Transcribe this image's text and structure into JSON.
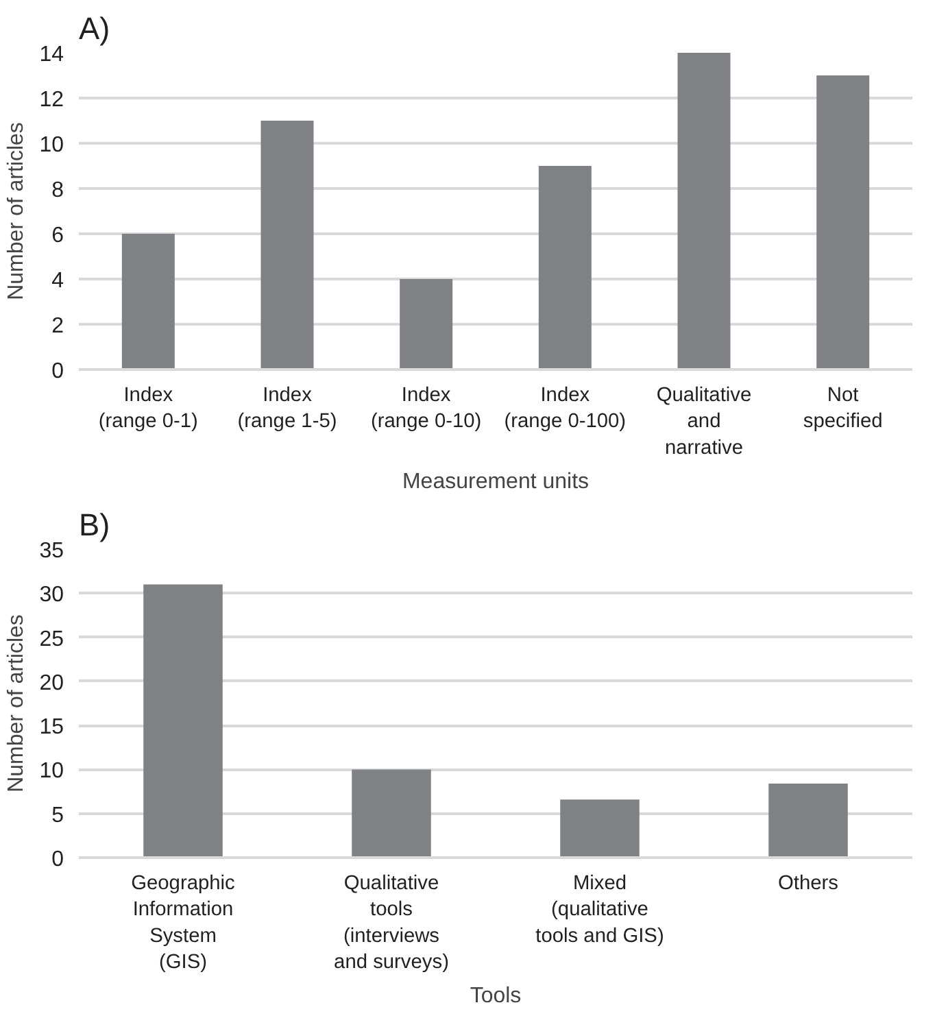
{
  "chart_data": [
    {
      "type": "bar",
      "title": "A)",
      "xlabel": "Measurement units",
      "ylabel": "Number of articles",
      "categories": [
        "Index\n(range 0-1)",
        "Index\n(range 1-5)",
        "Index\n(range 0-10)",
        "Index\n(range 0-100)",
        "Qualitative\nand\nnarrative",
        "Not\nspecified"
      ],
      "values": [
        6,
        11,
        4,
        9,
        14,
        13
      ],
      "color": "#808184",
      "ylim": [
        0,
        14
      ],
      "yticks": [
        0,
        2,
        4,
        6,
        8,
        10,
        12,
        14
      ],
      "grid": "y"
    },
    {
      "type": "bar",
      "title": "B)",
      "xlabel": "Tools",
      "ylabel": "Number of articles",
      "categories": [
        "Geographic\nInformation\nSystem\n(GIS)",
        "Qualitative\ntools\n(interviews\nand surveys)",
        "Mixed\n(qualitative\ntools and GIS)",
        "Others"
      ],
      "values": [
        31,
        10,
        6.6,
        8.4
      ],
      "color": "#808184",
      "ylim": [
        0,
        35
      ],
      "yticks": [
        0,
        5,
        10,
        15,
        20,
        25,
        30,
        35
      ],
      "grid": "y"
    }
  ]
}
